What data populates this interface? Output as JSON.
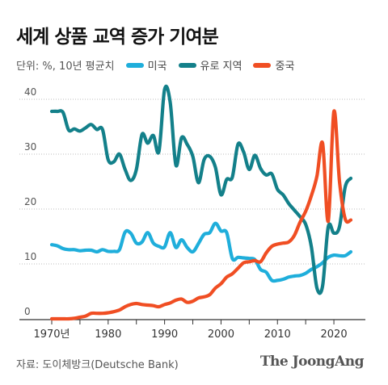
{
  "title": "세계 상품 교역 증가 기여분",
  "unit_label": "단위: %, 10년 평균치",
  "source": "자료: 도이체방크(Deutsche Bank)",
  "brand": "The JoongAng",
  "chart_data": {
    "type": "line",
    "title": "세계 상품 교역 증가 기여분",
    "xlabel": "",
    "ylabel": "",
    "xlim": [
      1970,
      2023
    ],
    "ylim": [
      0,
      40
    ],
    "yticks": [
      0,
      10,
      20,
      30,
      40
    ],
    "xticks": [
      {
        "value": 1970,
        "label": "1970년"
      },
      {
        "value": 1980,
        "label": "1980"
      },
      {
        "value": 1990,
        "label": "1990"
      },
      {
        "value": 2000,
        "label": "2000"
      },
      {
        "value": 2010,
        "label": "2010"
      },
      {
        "value": 2020,
        "label": "2020"
      }
    ],
    "grid": true,
    "legend_position": "top",
    "series": [
      {
        "name": "미국",
        "color": "#1FAEDB",
        "points": [
          [
            1970,
            13.5
          ],
          [
            1971,
            13.3
          ],
          [
            1972,
            12.8
          ],
          [
            1973,
            12.6
          ],
          [
            1974,
            12.6
          ],
          [
            1975,
            12.4
          ],
          [
            1976,
            12.5
          ],
          [
            1977,
            12.5
          ],
          [
            1978,
            12.2
          ],
          [
            1979,
            12.6
          ],
          [
            1980,
            12.3
          ],
          [
            1981,
            12.3
          ],
          [
            1982,
            12.6
          ],
          [
            1983,
            15.8
          ],
          [
            1984,
            15.6
          ],
          [
            1985,
            13.8
          ],
          [
            1986,
            14.0
          ],
          [
            1987,
            15.7
          ],
          [
            1988,
            13.8
          ],
          [
            1989,
            13.2
          ],
          [
            1990,
            13.1
          ],
          [
            1991,
            15.7
          ],
          [
            1992,
            13.0
          ],
          [
            1993,
            14.4
          ],
          [
            1994,
            13.0
          ],
          [
            1995,
            12.2
          ],
          [
            1996,
            13.7
          ],
          [
            1997,
            15.4
          ],
          [
            1998,
            15.7
          ],
          [
            1999,
            17.4
          ],
          [
            2000,
            16.0
          ],
          [
            2001,
            15.7
          ],
          [
            2002,
            11.0
          ],
          [
            2003,
            11.2
          ],
          [
            2004,
            11.1
          ],
          [
            2005,
            11.0
          ],
          [
            2006,
            10.8
          ],
          [
            2007,
            9.0
          ],
          [
            2008,
            8.5
          ],
          [
            2009,
            7.0
          ],
          [
            2010,
            7.0
          ],
          [
            2011,
            7.2
          ],
          [
            2012,
            7.6
          ],
          [
            2013,
            7.8
          ],
          [
            2014,
            7.9
          ],
          [
            2015,
            8.3
          ],
          [
            2016,
            9.0
          ],
          [
            2017,
            9.5
          ],
          [
            2018,
            10.2
          ],
          [
            2019,
            11.2
          ],
          [
            2020,
            11.6
          ],
          [
            2021,
            11.5
          ],
          [
            2022,
            11.5
          ],
          [
            2023,
            12.2
          ]
        ]
      },
      {
        "name": "유로 지역",
        "color": "#13808A",
        "points": [
          [
            1970,
            37.8
          ],
          [
            1971,
            37.8
          ],
          [
            1972,
            37.6
          ],
          [
            1973,
            34.4
          ],
          [
            1974,
            34.6
          ],
          [
            1975,
            34.2
          ],
          [
            1976,
            34.8
          ],
          [
            1977,
            35.4
          ],
          [
            1978,
            34.5
          ],
          [
            1979,
            34.5
          ],
          [
            1980,
            29.0
          ],
          [
            1981,
            28.6
          ],
          [
            1982,
            30.0
          ],
          [
            1983,
            27.2
          ],
          [
            1984,
            25.2
          ],
          [
            1985,
            27.2
          ],
          [
            1986,
            33.6
          ],
          [
            1987,
            32.0
          ],
          [
            1988,
            33.4
          ],
          [
            1989,
            30.5
          ],
          [
            1990,
            41.8
          ],
          [
            1991,
            39.4
          ],
          [
            1992,
            28.0
          ],
          [
            1993,
            33.0
          ],
          [
            1994,
            31.8
          ],
          [
            1995,
            29.6
          ],
          [
            1996,
            24.8
          ],
          [
            1997,
            29.0
          ],
          [
            1998,
            29.6
          ],
          [
            1999,
            27.6
          ],
          [
            2000,
            22.6
          ],
          [
            2001,
            25.4
          ],
          [
            2002,
            25.8
          ],
          [
            2003,
            31.8
          ],
          [
            2004,
            30.4
          ],
          [
            2005,
            27.2
          ],
          [
            2006,
            29.8
          ],
          [
            2007,
            27.4
          ],
          [
            2008,
            26.2
          ],
          [
            2009,
            26.4
          ],
          [
            2010,
            23.6
          ],
          [
            2011,
            22.6
          ],
          [
            2012,
            21.0
          ],
          [
            2013,
            19.8
          ],
          [
            2014,
            18.6
          ],
          [
            2015,
            17.2
          ],
          [
            2016,
            13.2
          ],
          [
            2017,
            5.6
          ],
          [
            2018,
            6.0
          ],
          [
            2019,
            16.8
          ],
          [
            2020,
            15.6
          ],
          [
            2021,
            16.8
          ],
          [
            2022,
            24.0
          ],
          [
            2023,
            25.6
          ]
        ]
      },
      {
        "name": "중국",
        "color": "#F04E23",
        "points": [
          [
            1970,
            0.0
          ],
          [
            1971,
            0.0
          ],
          [
            1972,
            0.0
          ],
          [
            1973,
            0.0
          ],
          [
            1974,
            0.1
          ],
          [
            1975,
            0.3
          ],
          [
            1976,
            0.5
          ],
          [
            1977,
            1.0
          ],
          [
            1978,
            1.0
          ],
          [
            1979,
            1.0
          ],
          [
            1980,
            1.1
          ],
          [
            1981,
            1.3
          ],
          [
            1982,
            1.6
          ],
          [
            1983,
            2.2
          ],
          [
            1984,
            2.6
          ],
          [
            1985,
            2.8
          ],
          [
            1986,
            2.6
          ],
          [
            1987,
            2.5
          ],
          [
            1988,
            2.4
          ],
          [
            1989,
            2.2
          ],
          [
            1990,
            2.6
          ],
          [
            1991,
            2.9
          ],
          [
            1992,
            3.4
          ],
          [
            1993,
            3.6
          ],
          [
            1994,
            3.0
          ],
          [
            1995,
            3.2
          ],
          [
            1996,
            3.8
          ],
          [
            1997,
            4.0
          ],
          [
            1998,
            4.4
          ],
          [
            1999,
            5.6
          ],
          [
            2000,
            6.4
          ],
          [
            2001,
            7.6
          ],
          [
            2002,
            8.2
          ],
          [
            2003,
            9.2
          ],
          [
            2004,
            10.2
          ],
          [
            2005,
            10.4
          ],
          [
            2006,
            10.6
          ],
          [
            2007,
            10.4
          ],
          [
            2008,
            12.0
          ],
          [
            2009,
            13.2
          ],
          [
            2010,
            13.6
          ],
          [
            2011,
            13.8
          ],
          [
            2012,
            14.0
          ],
          [
            2013,
            15.2
          ],
          [
            2014,
            17.6
          ],
          [
            2015,
            19.6
          ],
          [
            2016,
            22.4
          ],
          [
            2017,
            26.0
          ],
          [
            2018,
            32.0
          ],
          [
            2019,
            17.8
          ],
          [
            2020,
            37.8
          ],
          [
            2021,
            25.0
          ],
          [
            2022,
            18.2
          ],
          [
            2023,
            18.0
          ]
        ]
      }
    ]
  }
}
